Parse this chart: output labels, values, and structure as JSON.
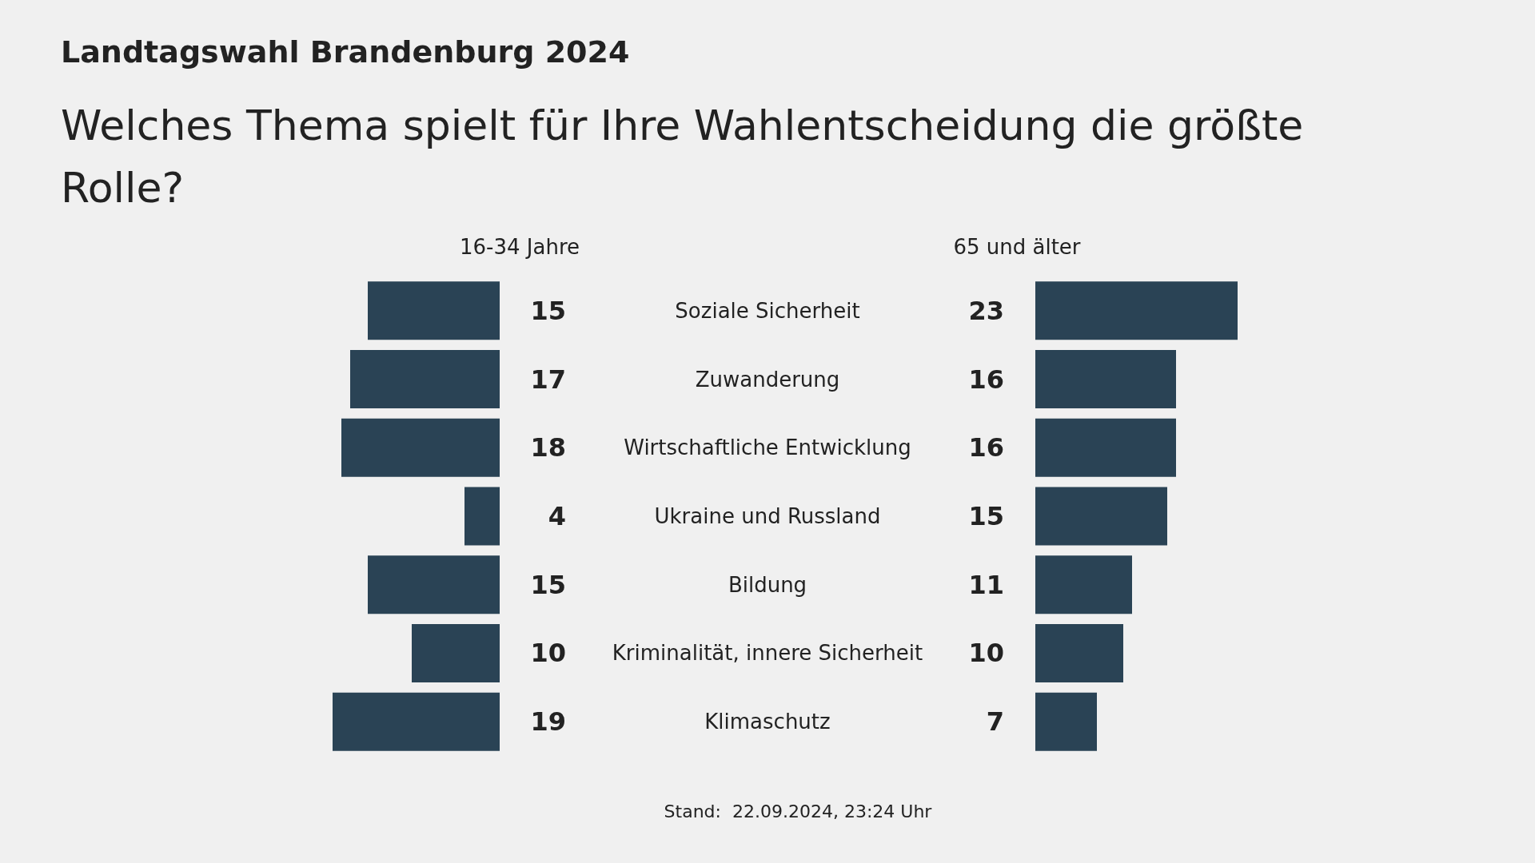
{
  "chart_data": [
    {
      "type": "bar",
      "orientation": "horizontal",
      "title": "Landtagswahl Brandenburg 2024",
      "subtitle": "Welches Thema spielt für Ihre Wahlentscheidung die größte Rolle?",
      "categories": [
        "Soziale Sicherheit",
        "Zuwanderung",
        "Wirtschaftliche Entwicklung",
        "Ukraine und Russland",
        "Bildung",
        "Kriminalität, innere Sicherheit",
        "Klimaschutz"
      ],
      "series": [
        {
          "name": "16-34 Jahre",
          "color": "#2a4355",
          "values": [
            15,
            17,
            18,
            4,
            15,
            10,
            19
          ]
        }
      ],
      "data_labels": true,
      "annotations": [
        "Stand:  22.09.2024, 23:24 Uhr"
      ]
    },
    {
      "type": "bar",
      "orientation": "horizontal",
      "categories": [
        null,
        null,
        null,
        null,
        null,
        null,
        null
      ],
      "series": [
        {
          "name": "65 und älter",
          "color": "#2a4355",
          "values": [
            23,
            16,
            16,
            15,
            11,
            10,
            7
          ]
        }
      ],
      "data_labels": true
    }
  ]
}
